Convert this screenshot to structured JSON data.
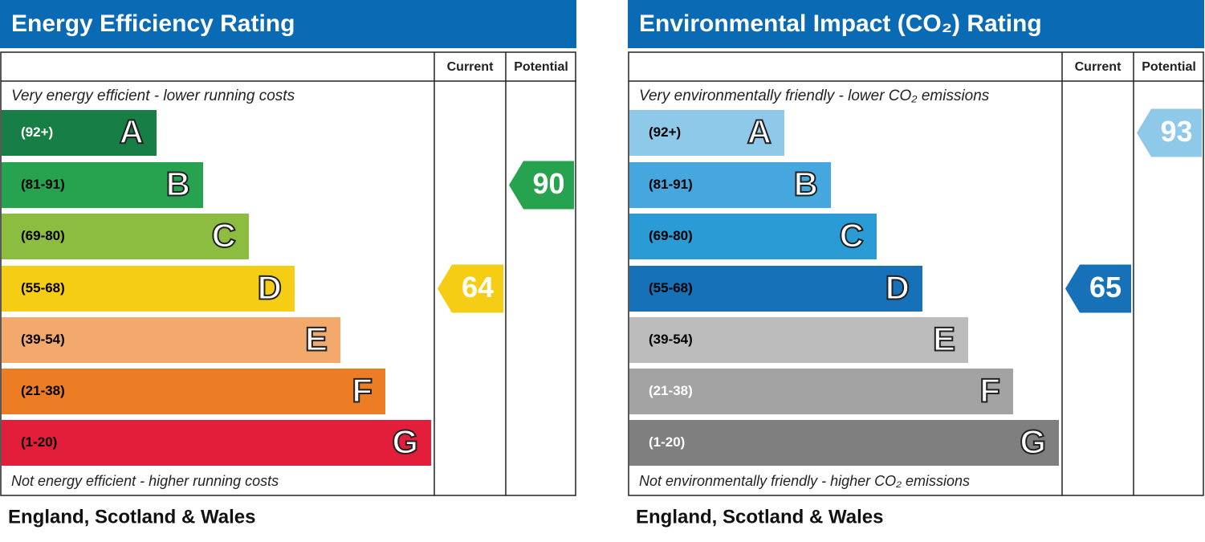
{
  "chart_data": [
    {
      "type": "epc",
      "title": "Energy Efficiency Rating",
      "columns": [
        "Current",
        "Potential"
      ],
      "top_label": "Very energy efficient - lower running costs",
      "bottom_label": "Not energy efficient - higher running costs",
      "footer": "England, Scotland & Wales",
      "bands": [
        {
          "range": "(92+)",
          "letter": "A",
          "color": "#177f45",
          "text_color": "#ffffff"
        },
        {
          "range": "(81-91)",
          "letter": "B",
          "color": "#27a350",
          "text_color": "#000000"
        },
        {
          "range": "(69-80)",
          "letter": "C",
          "color": "#8dbd40",
          "text_color": "#000000"
        },
        {
          "range": "(55-68)",
          "letter": "D",
          "color": "#f6cd15",
          "text_color": "#000000"
        },
        {
          "range": "(39-54)",
          "letter": "E",
          "color": "#f2a96b",
          "text_color": "#000000"
        },
        {
          "range": "(21-38)",
          "letter": "F",
          "color": "#ed7d24",
          "text_color": "#000000"
        },
        {
          "range": "(1-20)",
          "letter": "G",
          "color": "#e21e3a",
          "text_color": "#000000"
        }
      ],
      "current": 64,
      "potential": 90
    },
    {
      "type": "epc",
      "title": "Environmental Impact (CO₂) Rating",
      "columns": [
        "Current",
        "Potential"
      ],
      "top_label": "Very environmentally friendly - lower CO₂ emissions",
      "bottom_label": "Not environmentally friendly - higher CO₂ emissions",
      "footer": "England, Scotland & Wales",
      "bands": [
        {
          "range": "(92+)",
          "letter": "A",
          "color": "#8ec9ea",
          "text_color": "#000000"
        },
        {
          "range": "(81-91)",
          "letter": "B",
          "color": "#45a7dd",
          "text_color": "#000000"
        },
        {
          "range": "(69-80)",
          "letter": "C",
          "color": "#2a9bd4",
          "text_color": "#000000"
        },
        {
          "range": "(55-68)",
          "letter": "D",
          "color": "#1771b9",
          "text_color": "#000000"
        },
        {
          "range": "(39-54)",
          "letter": "E",
          "color": "#bcbcbc",
          "text_color": "#000000"
        },
        {
          "range": "(21-38)",
          "letter": "F",
          "color": "#a3a3a3",
          "text_color": "#ffffff"
        },
        {
          "range": "(1-20)",
          "letter": "G",
          "color": "#7f7f7f",
          "text_color": "#ffffff"
        }
      ],
      "current": 65,
      "potential": 93
    }
  ]
}
